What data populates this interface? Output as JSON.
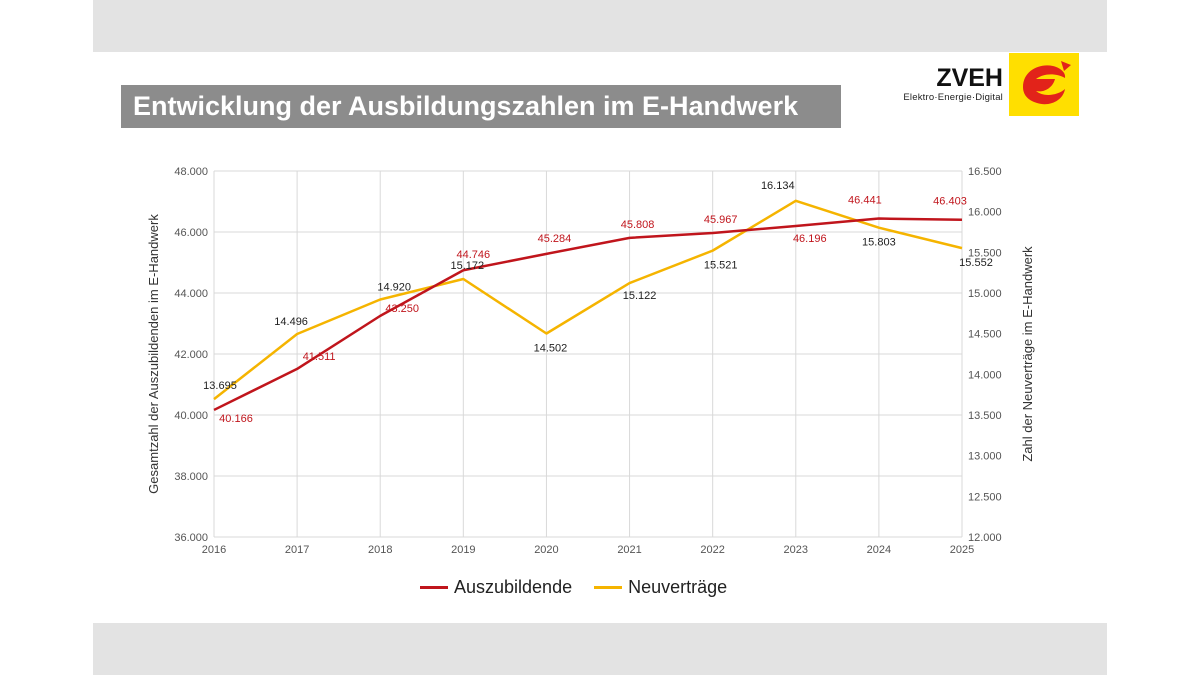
{
  "title": "Entwicklung der Ausbildungszahlen im E-Handwerk",
  "logo": {
    "brand": "ZVEH",
    "tagline": "Elektro·Energie·Digital"
  },
  "colors": {
    "series1": "#c0151c",
    "series2": "#f5b400",
    "grid": "#d9d9d9",
    "logo_yellow": "#ffdf00",
    "logo_red": "#e2231a"
  },
  "chart_data": {
    "type": "line",
    "x": [
      "2016",
      "2017",
      "2018",
      "2019",
      "2020",
      "2021",
      "2022",
      "2023",
      "2024",
      "2025"
    ],
    "series": [
      {
        "name": "Auszubildende",
        "axis": "left",
        "values": [
          40166,
          41511,
          43250,
          44746,
          45284,
          45808,
          45967,
          46196,
          46441,
          46403
        ],
        "labels": [
          "40.166",
          "41.511",
          "43.250",
          "44.746",
          "45.284",
          "45.808",
          "45.967",
          "46.196",
          "46.441",
          "46.403"
        ]
      },
      {
        "name": "Neuverträge",
        "axis": "right",
        "values": [
          13695,
          14496,
          14920,
          15172,
          14502,
          15122,
          15521,
          16134,
          15803,
          15552
        ],
        "labels": [
          "13.695",
          "14.496",
          "14.920",
          "15.172",
          "14.502",
          "15.122",
          "15.521",
          "16.134",
          "15.803",
          "15.552"
        ]
      }
    ],
    "ylabel": "Gesamtzahl der Auszubildenden im E-Handwerk",
    "y2label": "Zahl der Neuverträge im E-Handwerk",
    "ylim": [
      36000,
      48000
    ],
    "y2lim": [
      12000,
      16500
    ],
    "yticks": [
      "36.000",
      "38.000",
      "40.000",
      "42.000",
      "44.000",
      "46.000",
      "48.000"
    ],
    "y2ticks": [
      "12.000",
      "12.500",
      "13.000",
      "13.500",
      "14.000",
      "14.500",
      "15.000",
      "15.500",
      "16.000",
      "16.500"
    ],
    "grid": true,
    "legend": "bottom"
  }
}
